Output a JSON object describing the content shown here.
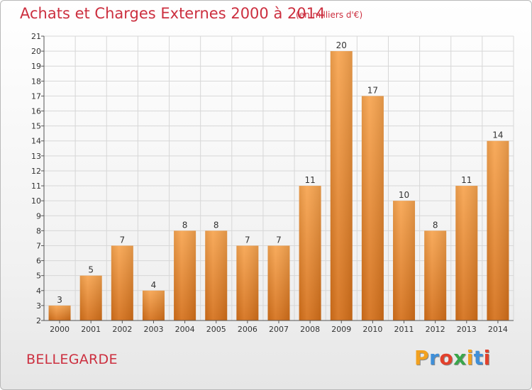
{
  "header": {
    "title": "Achats et Charges Externes 2000 à 2014",
    "subtitle": "(en milliers d'€)"
  },
  "footer": {
    "city": "BELLEGARDE",
    "logo": [
      "P",
      "r",
      "o",
      "x",
      "i",
      "t",
      "i"
    ],
    "logo_colors": [
      "#f2a11f",
      "#3f8fd8",
      "#e2412c",
      "#3aa64a",
      "#f2a11f",
      "#3f8fd8",
      "#e2412c"
    ]
  },
  "chart_data": {
    "type": "bar",
    "categories": [
      "2000",
      "2001",
      "2002",
      "2003",
      "2004",
      "2005",
      "2006",
      "2007",
      "2008",
      "2009",
      "2010",
      "2011",
      "2012",
      "2013",
      "2014"
    ],
    "values": [
      3,
      5,
      7,
      4,
      8,
      8,
      7,
      7,
      11,
      20,
      17,
      10,
      8,
      11,
      14
    ],
    "title": "Achats et Charges Externes 2000 à 2014",
    "subtitle": "(en milliers d'€)",
    "xlabel": "",
    "ylabel": "",
    "ylim": [
      2,
      21
    ],
    "yticks": [
      2,
      3,
      4,
      5,
      6,
      7,
      8,
      9,
      10,
      11,
      12,
      13,
      14,
      15,
      16,
      17,
      18,
      19,
      20,
      21
    ],
    "grid": true,
    "bar_color_top": "#f7a44f",
    "bar_color_bottom": "#d46f19",
    "data_labels": true
  }
}
